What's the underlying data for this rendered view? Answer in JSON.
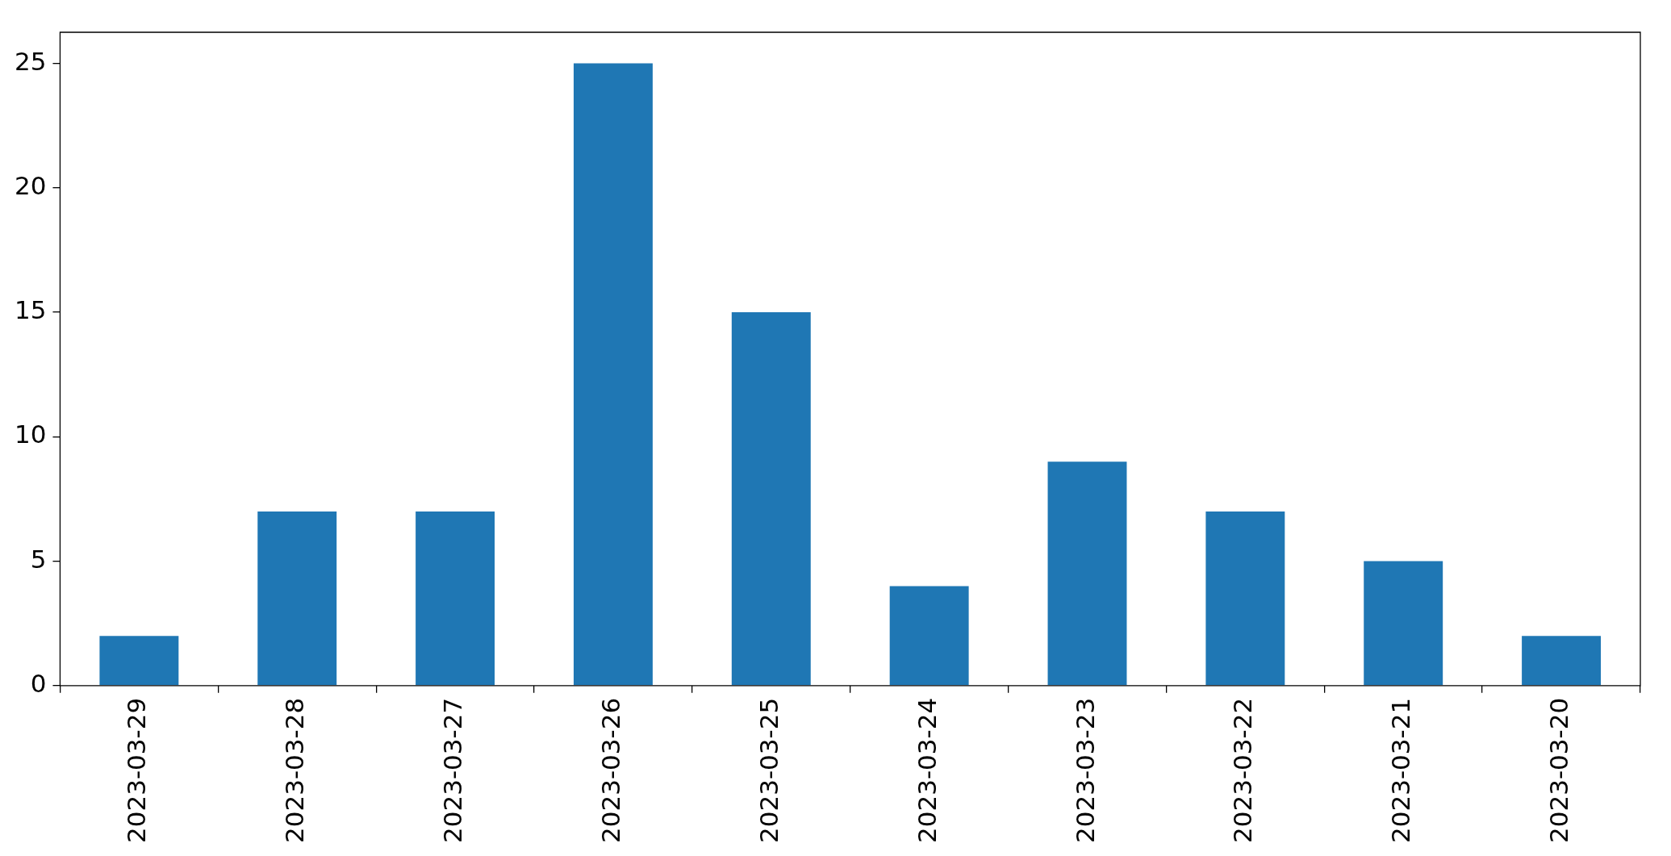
{
  "chart_data": {
    "type": "bar",
    "categories": [
      "2023-03-29",
      "2023-03-28",
      "2023-03-27",
      "2023-03-26",
      "2023-03-25",
      "2023-03-24",
      "2023-03-23",
      "2023-03-22",
      "2023-03-21",
      "2023-03-20"
    ],
    "values": [
      2,
      7,
      7,
      25,
      15,
      4,
      9,
      7,
      5,
      2
    ],
    "color": "#1f77b4",
    "ylim": [
      0,
      26.25
    ],
    "yticks": [
      0,
      5,
      10,
      15,
      20,
      25
    ],
    "grid": false,
    "legend": false
  }
}
